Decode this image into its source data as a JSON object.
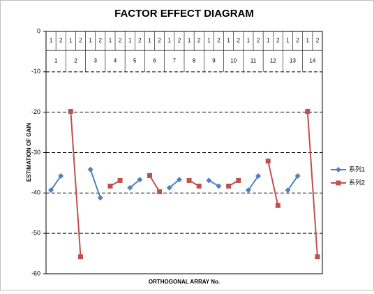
{
  "chart_data": {
    "type": "line",
    "title": "FACTOR EFFECT DIAGRAM",
    "xlabel": "ORTHOGONAL ARRAY No.",
    "ylabel": "ESTIMATION OF GAIN",
    "categories": [
      1,
      2,
      1,
      2,
      1,
      2,
      1,
      2,
      1,
      2,
      1,
      2,
      1,
      2,
      1,
      2,
      1,
      2,
      1,
      2,
      1,
      2,
      1,
      2,
      1,
      2,
      1,
      2
    ],
    "groups": [
      1,
      2,
      3,
      4,
      5,
      6,
      7,
      8,
      9,
      10,
      11,
      12,
      13,
      14
    ],
    "series": [
      {
        "name": "系列1",
        "color": "#4f81bd",
        "marker": "diamond",
        "values": [
          -39.3,
          -35.8,
          null,
          null,
          -34.2,
          -41.2,
          null,
          null,
          -38.7,
          -36.7,
          null,
          null,
          -38.7,
          -36.7,
          null,
          null,
          -36.9,
          -38.3,
          null,
          null,
          -39.3,
          -35.8,
          null,
          null,
          -39.3,
          -35.8,
          null,
          null
        ]
      },
      {
        "name": "系列2",
        "color": "#c0504d",
        "marker": "square",
        "values": [
          null,
          null,
          -19.8,
          -55.8,
          null,
          null,
          -38.3,
          -36.9,
          null,
          null,
          -35.7,
          -39.7,
          null,
          null,
          -36.9,
          -38.3,
          null,
          null,
          -38.3,
          -36.9,
          null,
          null,
          -32.1,
          -43.1,
          null,
          null,
          -19.8,
          -55.8
        ]
      }
    ],
    "ylim": [
      -60,
      0
    ],
    "yticks": [
      0,
      -10,
      -20,
      -30,
      -40,
      -50,
      -60
    ],
    "grid": true,
    "legend": "right"
  }
}
